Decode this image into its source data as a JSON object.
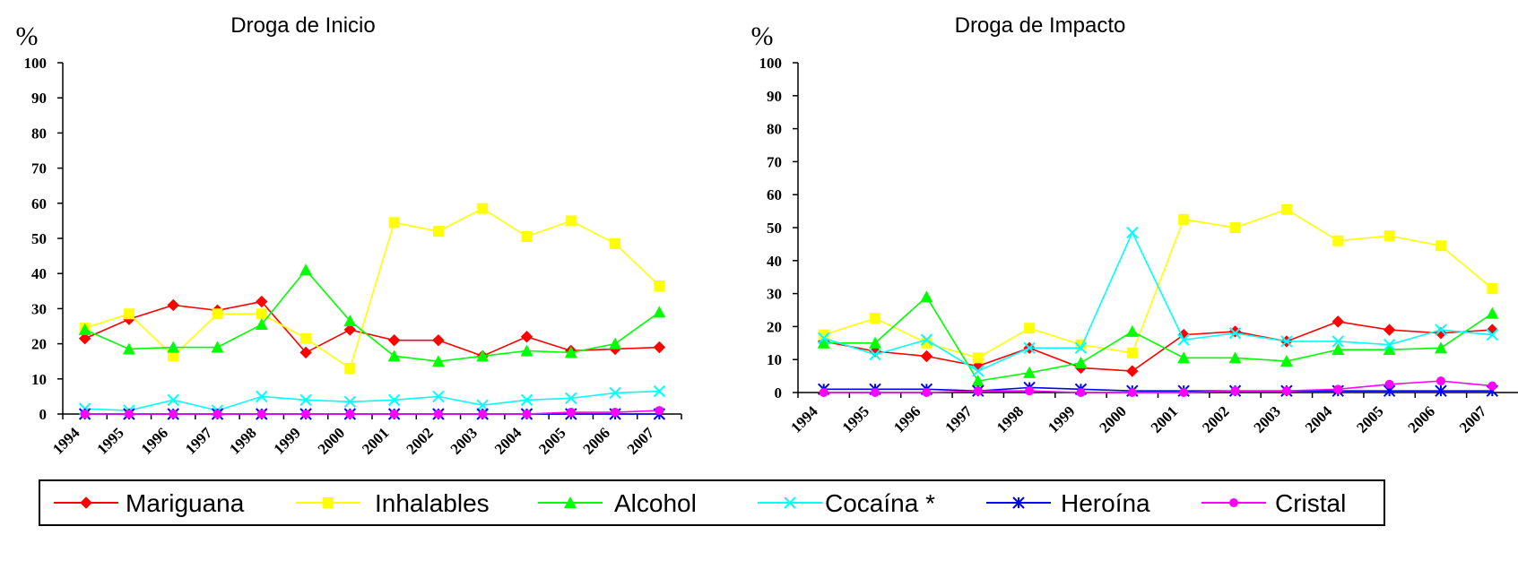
{
  "legend": {
    "position": "bottom",
    "entries": [
      {
        "name": "Mariguana",
        "color": "#ff0000",
        "marker": "diamond"
      },
      {
        "name": "Inhalables",
        "color": "#ffff00",
        "marker": "square"
      },
      {
        "name": "Alcohol",
        "color": "#00ff00",
        "marker": "triangle"
      },
      {
        "name": "Cocaína *",
        "color": "#00ffff",
        "marker": "x"
      },
      {
        "name": "Heroína",
        "color": "#0000ff",
        "marker": "asterisk"
      },
      {
        "name": "Cristal",
        "color": "#ff00ff",
        "marker": "circle"
      }
    ]
  },
  "chart_data": [
    {
      "type": "line",
      "title": "Droga de Inicio",
      "ylabel": "%",
      "xlabel": "",
      "ylim": [
        0,
        100
      ],
      "yticks": [
        "0",
        "10",
        "20",
        "30",
        "40",
        "50",
        "60",
        "70",
        "80",
        "90",
        "100"
      ],
      "x": [
        "1994",
        "1995",
        "1996",
        "1997",
        "1998",
        "1999",
        "2000",
        "2001",
        "2002",
        "2003",
        "2004",
        "2005",
        "2006",
        "2007"
      ],
      "series": [
        {
          "name": "Mariguana",
          "values": [
            21.5,
            27,
            31,
            29.5,
            32,
            17.5,
            24,
            21,
            21,
            16.5,
            22,
            18,
            18.5,
            19
          ]
        },
        {
          "name": "Inhalables",
          "values": [
            24.5,
            28.5,
            16.5,
            28.5,
            28.5,
            21.5,
            13,
            54.5,
            52,
            58.5,
            50.5,
            55,
            48.5,
            36.5
          ]
        },
        {
          "name": "Alcohol",
          "values": [
            24,
            18.5,
            19,
            19,
            25.5,
            41,
            26.5,
            16.5,
            15,
            16.5,
            18,
            17.5,
            20,
            29
          ]
        },
        {
          "name": "Cocaína *",
          "values": [
            1.5,
            1,
            4,
            1,
            5,
            4,
            3.5,
            4,
            5,
            2.5,
            4,
            4.5,
            6,
            6.5
          ]
        },
        {
          "name": "Heroína",
          "values": [
            0,
            0,
            0,
            0,
            0,
            0,
            0,
            0,
            0,
            0,
            0,
            0,
            0,
            0
          ]
        },
        {
          "name": "Cristal",
          "values": [
            0,
            0,
            0,
            0,
            0,
            0,
            0,
            0,
            0,
            0,
            0,
            0.5,
            0.5,
            1
          ]
        }
      ]
    },
    {
      "type": "line",
      "title": "Droga de Impacto",
      "ylabel": "%",
      "xlabel": "",
      "ylim": [
        0,
        100
      ],
      "yticks": [
        "0",
        "10",
        "20",
        "30",
        "40",
        "50",
        "60",
        "70",
        "80",
        "90",
        "100"
      ],
      "x": [
        "1994",
        "1995",
        "1996",
        "1997",
        "1998",
        "1999",
        "2000",
        "2001",
        "2002",
        "2003",
        "2004",
        "2005",
        "2006",
        "2007"
      ],
      "series": [
        {
          "name": "Mariguana",
          "values": [
            15.5,
            12.5,
            11,
            8,
            13.5,
            7.5,
            6.5,
            17.5,
            18.5,
            15.5,
            21.5,
            19,
            18,
            19
          ]
        },
        {
          "name": "Inhalables",
          "values": [
            17.5,
            22.5,
            15,
            10.5,
            19.5,
            14.5,
            12,
            52.5,
            50,
            55.5,
            46,
            47.5,
            44.5,
            31.5
          ]
        },
        {
          "name": "Alcohol",
          "values": [
            15,
            15,
            29,
            3.5,
            6,
            9,
            18.5,
            10.5,
            10.5,
            9.5,
            13,
            13,
            13.5,
            24
          ]
        },
        {
          "name": "Cocaína *",
          "values": [
            16.5,
            11.5,
            16,
            6.5,
            13.5,
            13.5,
            48.5,
            16,
            18,
            15.5,
            15.5,
            14.5,
            19,
            17.5
          ]
        },
        {
          "name": "Heroína",
          "values": [
            1,
            1,
            1,
            0.5,
            1.5,
            1,
            0.5,
            0.5,
            0.5,
            0.5,
            0.5,
            0.5,
            0.5,
            0.5
          ]
        },
        {
          "name": "Cristal",
          "values": [
            0,
            0,
            0,
            0.5,
            0.5,
            0,
            0,
            0,
            0.5,
            0.5,
            1,
            2.5,
            3.5,
            2
          ]
        }
      ]
    }
  ]
}
